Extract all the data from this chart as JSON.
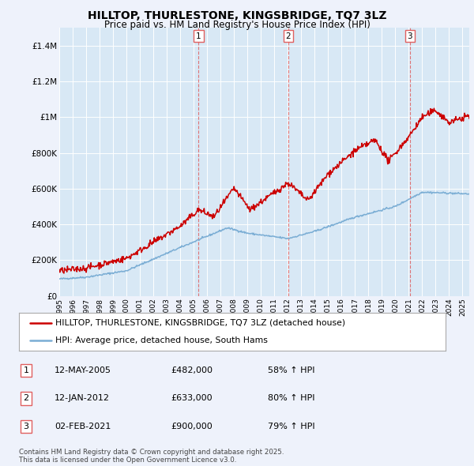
{
  "title": "HILLTOP, THURLESTONE, KINGSBRIDGE, TQ7 3LZ",
  "subtitle": "Price paid vs. HM Land Registry's House Price Index (HPI)",
  "background_color": "#eef2fb",
  "plot_bg_color": "#d8e8f5",
  "grid_color": "#ffffff",
  "ylim": [
    0,
    1500000
  ],
  "yticks": [
    0,
    200000,
    400000,
    600000,
    800000,
    1000000,
    1200000,
    1400000
  ],
  "ytick_labels": [
    "£0",
    "£200K",
    "£400K",
    "£600K",
    "£800K",
    "£1M",
    "£1.2M",
    "£1.4M"
  ],
  "transactions": [
    {
      "num": "1",
      "date": "12-MAY-2005",
      "price": "£482,000",
      "hpi_pct": "58% ↑ HPI",
      "year": 2005.37
    },
    {
      "num": "2",
      "date": "12-JAN-2012",
      "price": "£633,000",
      "hpi_pct": "80% ↑ HPI",
      "year": 2012.04
    },
    {
      "num": "3",
      "date": "02-FEB-2021",
      "price": "£900,000",
      "hpi_pct": "79% ↑ HPI",
      "year": 2021.09
    }
  ],
  "legend_label_red": "HILLTOP, THURLESTONE, KINGSBRIDGE, TQ7 3LZ (detached house)",
  "legend_label_blue": "HPI: Average price, detached house, South Hams",
  "footer": "Contains HM Land Registry data © Crown copyright and database right 2025.\nThis data is licensed under the Open Government Licence v3.0.",
  "red_color": "#cc0000",
  "blue_color": "#7aadd4",
  "vline_color": "#e06060",
  "xstart": 1995,
  "xend": 2025.5
}
